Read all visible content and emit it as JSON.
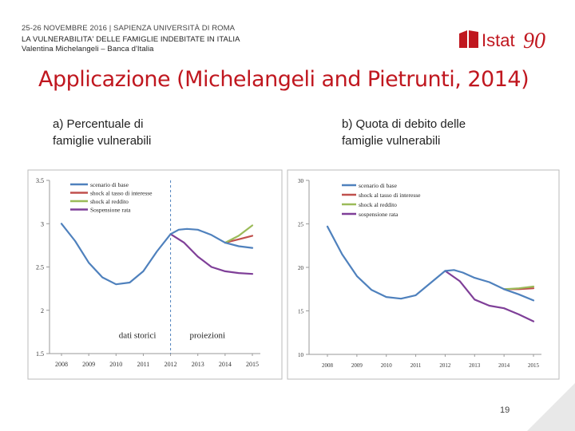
{
  "header": {
    "line1": "25-26 NOVEMBRE 2016 | SAPIENZA UNIVERSITÀ DI ROMA",
    "line2": "LA VULNERABILITA' DELLE FAMIGLIE INDEBITATE IN ITALIA",
    "line3": "Valentina Michelangeli – Banca d'Italia"
  },
  "logo": {
    "text": "Istat",
    "number": "90",
    "color": "#c0171f"
  },
  "slide": {
    "title": "Applicazione (Michelangeli and Pietrunti, 2014)",
    "subtitle_a_1": "a) Percentuale di",
    "subtitle_a_2": "famiglie vulnerabili",
    "subtitle_b_1": "b) Quota di debito delle",
    "subtitle_b_2": "famiglie vulnerabili",
    "page_number": "19"
  },
  "colors": {
    "title": "#c0171f",
    "base": "#4f81bd",
    "rate": "#c0504d",
    "income": "#9bbb59",
    "suspension": "#7f3f98"
  },
  "chart_data": [
    {
      "type": "line",
      "panel": "a",
      "xlabel": "",
      "ylabel": "",
      "ylim": [
        1.5,
        3.5
      ],
      "xlim": [
        2008,
        2015
      ],
      "yticks": [
        "3.5",
        "3",
        "2.5",
        "2",
        "1.5"
      ],
      "ytick_values": [
        3.5,
        3.0,
        2.5,
        2.0,
        1.5
      ],
      "xticks": [
        "2008",
        "2009",
        "2010",
        "2011",
        "2012",
        "2013",
        "2014",
        "2015"
      ],
      "xtick_values": [
        2008,
        2009,
        2010,
        2011,
        2012,
        2013,
        2014,
        2015
      ],
      "divider_x": 2012,
      "annotations": [
        {
          "text": "dati storici",
          "x": 2010.1,
          "y": 1.68
        },
        {
          "text": "proiezioni",
          "x": 2012.7,
          "y": 1.68
        }
      ],
      "legend_position": "top-left",
      "series": [
        {
          "name": "scenario di base",
          "color_key": "base",
          "x": [
            2008,
            2008.5,
            2009,
            2009.5,
            2010,
            2010.5,
            2011,
            2011.5,
            2012,
            2012.3,
            2012.6,
            2013,
            2013.5,
            2014,
            2014.5,
            2015
          ],
          "y": [
            3.0,
            2.8,
            2.55,
            2.38,
            2.3,
            2.32,
            2.45,
            2.68,
            2.88,
            2.93,
            2.94,
            2.93,
            2.87,
            2.78,
            2.74,
            2.72
          ]
        },
        {
          "name": "shock al tasso di interesse",
          "color_key": "rate",
          "x": [
            2014,
            2014.5,
            2015
          ],
          "y": [
            2.78,
            2.82,
            2.86
          ]
        },
        {
          "name": "shock al reddito",
          "color_key": "income",
          "x": [
            2014,
            2014.5,
            2015
          ],
          "y": [
            2.78,
            2.86,
            2.98
          ]
        },
        {
          "name": "Sospensione rata",
          "color_key": "suspension",
          "x": [
            2012,
            2012.5,
            2013,
            2013.5,
            2014,
            2014.5,
            2015
          ],
          "y": [
            2.88,
            2.78,
            2.62,
            2.5,
            2.45,
            2.43,
            2.42
          ]
        }
      ]
    },
    {
      "type": "line",
      "panel": "b",
      "xlabel": "",
      "ylabel": "",
      "ylim": [
        10,
        30
      ],
      "xlim": [
        2008,
        2015
      ],
      "yticks": [
        "30",
        "25",
        "20",
        "15",
        "10"
      ],
      "ytick_values": [
        30,
        25,
        20,
        15,
        10
      ],
      "xticks": [
        "2008",
        "2009",
        "2010",
        "2011",
        "2012",
        "2013",
        "2014",
        "2015"
      ],
      "xtick_values": [
        2008,
        2009,
        2010,
        2011,
        2012,
        2013,
        2014,
        2015
      ],
      "legend_position": "top-left",
      "series": [
        {
          "name": "scenario di base",
          "color_key": "base",
          "x": [
            2008,
            2008.5,
            2009,
            2009.5,
            2010,
            2010.5,
            2011,
            2011.5,
            2012,
            2012.3,
            2012.6,
            2013,
            2013.5,
            2014,
            2014.5,
            2015
          ],
          "y": [
            24.7,
            21.5,
            19.0,
            17.4,
            16.6,
            16.4,
            16.8,
            18.2,
            19.6,
            19.7,
            19.4,
            18.8,
            18.3,
            17.5,
            16.9,
            16.2
          ]
        },
        {
          "name": "shock al tasso di interesse",
          "color_key": "rate",
          "x": [
            2014,
            2014.5,
            2015
          ],
          "y": [
            17.5,
            17.5,
            17.6
          ]
        },
        {
          "name": "shock al reddito",
          "color_key": "income",
          "x": [
            2014,
            2014.5,
            2015
          ],
          "y": [
            17.5,
            17.6,
            17.8
          ]
        },
        {
          "name": "sospensione rata",
          "color_key": "suspension",
          "x": [
            2012,
            2012.5,
            2013,
            2013.5,
            2014,
            2014.5,
            2015
          ],
          "y": [
            19.6,
            18.4,
            16.3,
            15.6,
            15.3,
            14.6,
            13.8
          ]
        }
      ]
    }
  ]
}
